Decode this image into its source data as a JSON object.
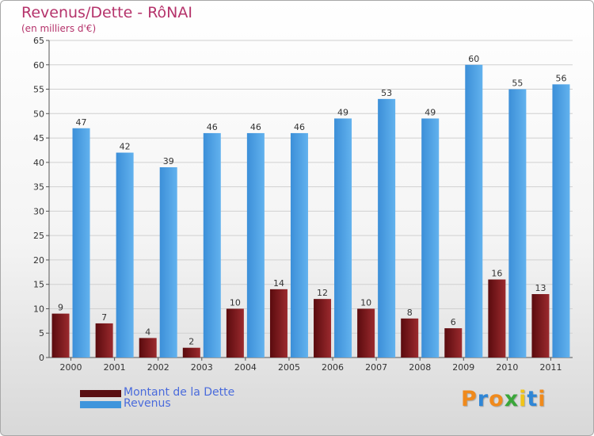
{
  "title": "Revenus/Dette - RôNAI",
  "subtitle": "(en milliers d'€)",
  "colors": {
    "debt": "#7a1418",
    "revenue": "#4fa3e6",
    "title": "#b5336b",
    "legend_text": "#4a6bdc",
    "grid": "#d0d0d0"
  },
  "legend": [
    {
      "label": "Montant de la Dette",
      "color": "#5a0f12"
    },
    {
      "label": "Revenus",
      "color": "#3f95dc"
    }
  ],
  "logo": {
    "text": "Proxiti",
    "letters": [
      "P",
      "r",
      "o",
      "x",
      "i",
      "t",
      "i"
    ],
    "colors": [
      "#f08a1c",
      "#2f86d6",
      "#f08a1c",
      "#3aa63a",
      "#f0c419",
      "#2f86d6",
      "#f08a1c"
    ]
  },
  "chart_data": {
    "type": "bar",
    "categories": [
      "2000",
      "2001",
      "2002",
      "2003",
      "2004",
      "2005",
      "2006",
      "2007",
      "2008",
      "2009",
      "2010",
      "2011"
    ],
    "series": [
      {
        "name": "Montant de la Dette",
        "values": [
          9,
          7,
          4,
          2,
          10,
          14,
          12,
          10,
          8,
          6,
          16,
          13
        ]
      },
      {
        "name": "Revenus",
        "values": [
          47,
          42,
          39,
          46,
          46,
          46,
          49,
          53,
          49,
          60,
          55,
          56
        ]
      }
    ],
    "y_ticks": [
      0,
      5,
      10,
      15,
      20,
      25,
      30,
      35,
      40,
      45,
      50,
      55,
      60,
      65
    ],
    "ylim": [
      0,
      65
    ],
    "grid": true,
    "legend_position": "bottom-left"
  }
}
